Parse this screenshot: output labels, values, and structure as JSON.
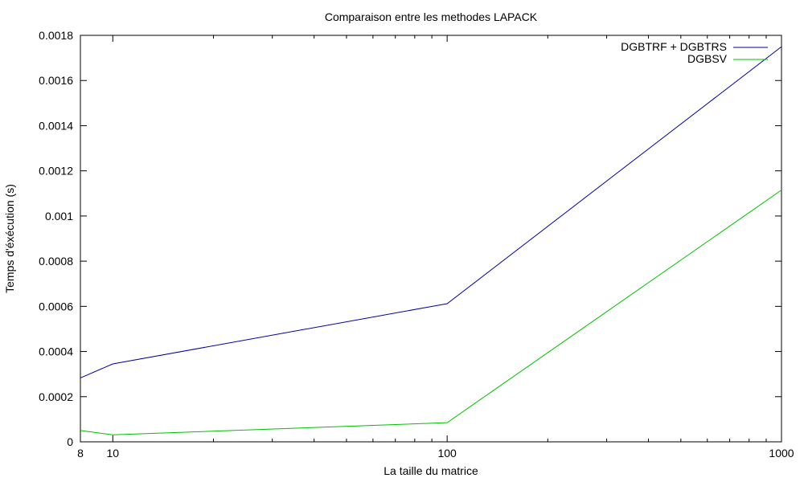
{
  "chart_data": {
    "type": "line",
    "title": "Comparaison entre les methodes LAPACK",
    "xlabel": "La taille du matrice",
    "ylabel": "Temps d'éxécution (s)",
    "x_scale": "log",
    "x": [
      8,
      10,
      100,
      1000
    ],
    "xticks": [
      "8",
      "10",
      "100",
      "1000"
    ],
    "xlim": [
      8,
      1000
    ],
    "ylim": [
      0,
      0.0018
    ],
    "yticks": [
      "0",
      "0.0002",
      "0.0004",
      "0.0006",
      "0.0008",
      "0.001",
      "0.0012",
      "0.0014",
      "0.0016",
      "0.0018"
    ],
    "grid": false,
    "legend_position": "top-right",
    "series": [
      {
        "name": "DGBTRF + DGBTRS",
        "color": "#0000a0",
        "values": [
          0.000283,
          0.000345,
          0.000612,
          0.00175
        ]
      },
      {
        "name": "DGBSV",
        "color": "#00c000",
        "values": [
          5e-05,
          3.1e-05,
          8.5e-05,
          0.001115
        ]
      }
    ]
  }
}
